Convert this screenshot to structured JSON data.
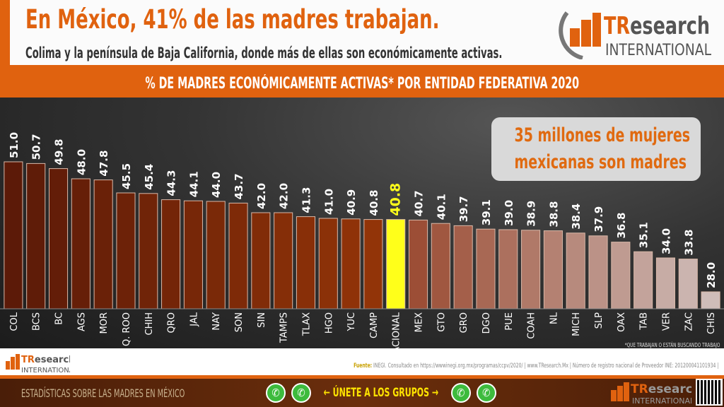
{
  "header": {
    "title": "En México, 41% de las madres trabajan.",
    "subtitle": "Colima y la península de Baja California, donde más de ellas son económicamente activas.",
    "logo_text": "TResearch",
    "logo_sub": "INTERNATIONAL"
  },
  "callout": {
    "line1": "35 millones de mujeres",
    "line2": "mexicanas son madres"
  },
  "footnote": "*QUE TRABAJAN O ESTÁN BUSCANDO TRABAJO",
  "footer": {
    "source_label": "Fuente:",
    "source": "INEGI. Consultado en https://wwwinegi.org.mx/programas/ccpv/2020/ | www.TResearch.Mx | Número de registro nacional de Proveedor INE: 201200041101934 |",
    "left_text": "ESTADÍSTICAS SOBRE LAS MADRES EN MÉXICO",
    "join_text": "← ÚNETE A LOS GRUPOS →"
  },
  "colors": {
    "orange": "#e0620f",
    "highlight": "#ffff1a",
    "bar_dark": "#5c1a08",
    "bar_mid": "#923408",
    "bar_light_start": "#9c4e36",
    "bar_light_end": "#cfbdb9"
  },
  "icons": [
    "whatsapp-icon",
    "whatsapp-icon",
    "whatsapp-icon",
    "whatsapp-icon",
    "qr-code"
  ],
  "chart_data": {
    "type": "bar",
    "title": "% DE MADRES ECONÓMICAMENTE ACTIVAS* POR ENTIDAD FEDERATIVA 2020",
    "categories": [
      "COL",
      "BCS",
      "BC",
      "AGS",
      "MOR",
      "Q. ROO",
      "CHIH",
      "QRO",
      "JAL",
      "NAY",
      "SON",
      "SIN",
      "TAMPS",
      "TLAX",
      "HGO",
      "YUC",
      "CAMP",
      "NACIONAL",
      "MEX",
      "GTO",
      "GRO",
      "DGO",
      "PUE",
      "COAH",
      "NL",
      "MICH",
      "SLP",
      "OAX",
      "TAB",
      "VER",
      "ZAC",
      "CHIS"
    ],
    "values": [
      51.0,
      50.7,
      49.8,
      48.0,
      47.8,
      45.5,
      45.4,
      44.3,
      44.1,
      44.0,
      43.7,
      42.0,
      42.0,
      41.3,
      41.0,
      40.9,
      40.8,
      40.8,
      40.7,
      40.1,
      39.7,
      39.1,
      39.0,
      38.9,
      38.8,
      38.4,
      37.9,
      36.8,
      35.1,
      34.0,
      33.8,
      28.0
    ],
    "labels": [
      "51.0",
      "50.7",
      "49.8",
      "48.0",
      "47.8",
      "45.5",
      "45.4",
      "44.3",
      "44.1",
      "44.0",
      "43.7",
      "42.0",
      "42.0",
      "41.3",
      "41.0",
      "40.9",
      "40.8",
      "40.8",
      "40.7",
      "40.1",
      "39.7",
      "39.1",
      "39.0",
      "38.9",
      "38.8",
      "38.4",
      "37.9",
      "36.8",
      "35.1",
      "34.0",
      "33.8",
      "28.0"
    ],
    "highlight": "NACIONAL",
    "grid": false,
    "legend": "none"
  }
}
